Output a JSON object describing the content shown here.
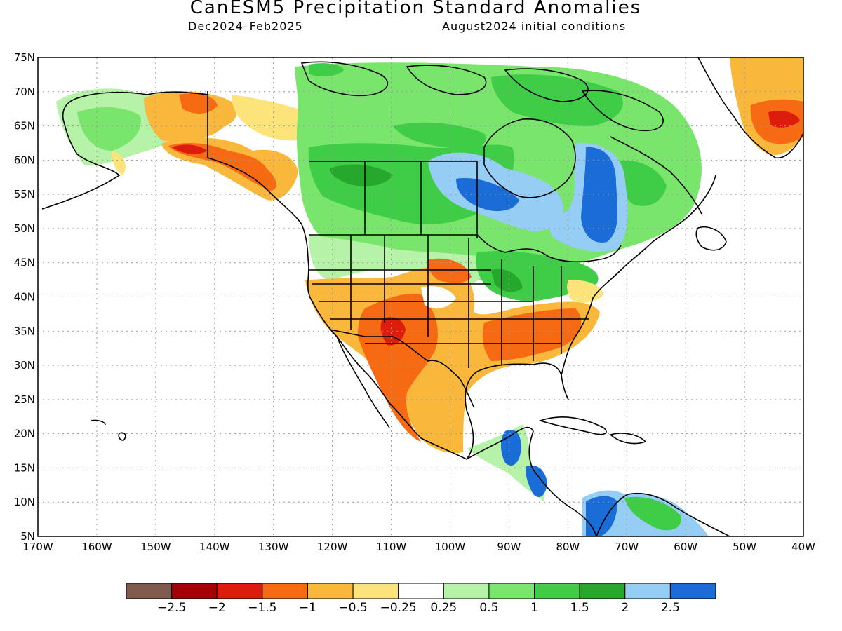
{
  "header": {
    "title": "CanESM5 Precipitation Standard Anomalies",
    "period": "Dec2024–Feb2025",
    "conditions": "August2024 initial conditions"
  },
  "map": {
    "lat_ticks": [
      "75N",
      "70N",
      "65N",
      "60N",
      "55N",
      "50N",
      "45N",
      "40N",
      "35N",
      "30N",
      "25N",
      "20N",
      "15N",
      "10N",
      "5N"
    ],
    "lon_ticks": [
      "170W",
      "160W",
      "150W",
      "140W",
      "130W",
      "120W",
      "110W",
      "100W",
      "90W",
      "80W",
      "70W",
      "60W",
      "50W",
      "40W"
    ],
    "lat_range": [
      5,
      75
    ],
    "lon_range": [
      -170,
      -40
    ],
    "grid": true
  },
  "colorbar": {
    "colors": [
      "#7f5a4d",
      "#a50008",
      "#dd1d0c",
      "#f56a12",
      "#f9b73b",
      "#fde47a",
      "#ffffff",
      "#b6f2a8",
      "#7ae56c",
      "#3fcc47",
      "#25a82b",
      "#96cdf5",
      "#1a6cd6"
    ],
    "labels": [
      "−2.5",
      "−2",
      "−1.5",
      "−1",
      "−0.5",
      "−0.25",
      "0.25",
      "0.5",
      "1",
      "1.5",
      "2",
      "2.5"
    ]
  }
}
